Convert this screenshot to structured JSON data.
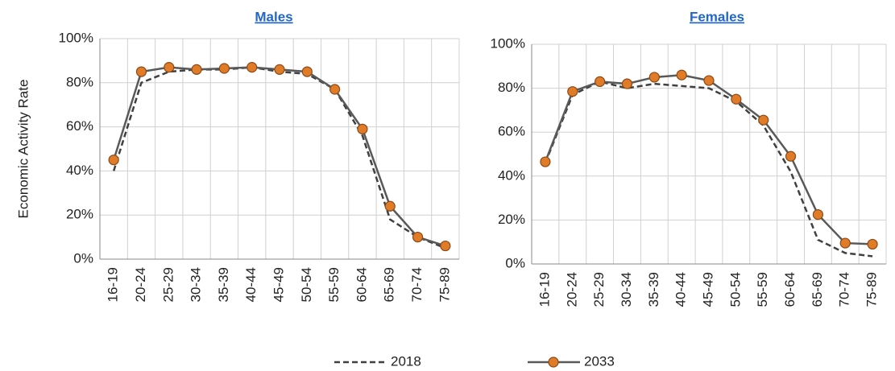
{
  "chart_data": [
    {
      "type": "line",
      "title": "Males",
      "ylabel": "Economic Activity Rate",
      "categories": [
        "16-19",
        "20-24",
        "25-29",
        "30-34",
        "35-39",
        "40-44",
        "45-49",
        "50-54",
        "55-59",
        "60-64",
        "65-69",
        "70-74",
        "75-89"
      ],
      "series": [
        {
          "name": "2018",
          "color": "#404040",
          "style": "dashed",
          "marker": false,
          "values": [
            40,
            80,
            85,
            86,
            86,
            87,
            85,
            84,
            77,
            56,
            18,
            10,
            5
          ]
        },
        {
          "name": "2033",
          "color": "#595959",
          "style": "solid",
          "marker": true,
          "marker_color": "#e07b28",
          "values": [
            45,
            85,
            87,
            86,
            86.5,
            87,
            86,
            85,
            77,
            59,
            24,
            10,
            6
          ]
        }
      ],
      "ylim": [
        0,
        100
      ],
      "yticks": [
        {
          "value": 0,
          "label": "0%"
        },
        {
          "value": 20,
          "label": "20%"
        },
        {
          "value": 40,
          "label": "40%"
        },
        {
          "value": 60,
          "label": "60%"
        },
        {
          "value": 80,
          "label": "80%"
        },
        {
          "value": 100,
          "label": "100%"
        }
      ],
      "grid": true
    },
    {
      "type": "line",
      "title": "Females",
      "categories": [
        "16-19",
        "20-24",
        "25-29",
        "30-34",
        "35-39",
        "40-44",
        "45-49",
        "50-54",
        "55-59",
        "60-64",
        "65-69",
        "70-74",
        "75-89"
      ],
      "series": [
        {
          "name": "2018",
          "color": "#404040",
          "style": "dashed",
          "marker": false,
          "values": [
            46,
            77,
            83,
            80,
            82,
            81,
            80,
            74,
            63,
            42,
            11,
            5,
            3.5
          ]
        },
        {
          "name": "2033",
          "color": "#595959",
          "style": "solid",
          "marker": true,
          "marker_color": "#e07b28",
          "values": [
            46.5,
            78.5,
            83,
            82,
            85,
            86,
            83.5,
            75,
            65.5,
            49,
            22.5,
            9.5,
            9
          ]
        }
      ],
      "ylim": [
        0,
        100
      ],
      "yticks": [
        {
          "value": 0,
          "label": "0%"
        },
        {
          "value": 20,
          "label": "20%"
        },
        {
          "value": 40,
          "label": "40%"
        },
        {
          "value": 60,
          "label": "60%"
        },
        {
          "value": 80,
          "label": "80%"
        },
        {
          "value": 100,
          "label": "100%"
        }
      ],
      "grid": true
    }
  ]
}
